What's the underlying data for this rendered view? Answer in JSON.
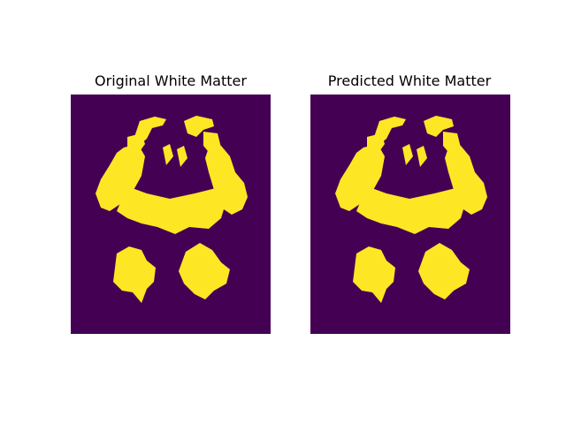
{
  "figure": {
    "panels": [
      {
        "title": "Original White Matter"
      },
      {
        "title": "Predicted White Matter"
      }
    ],
    "colors": {
      "background": "#440154",
      "mask": "#fde725",
      "edge": "#35b779"
    }
  }
}
